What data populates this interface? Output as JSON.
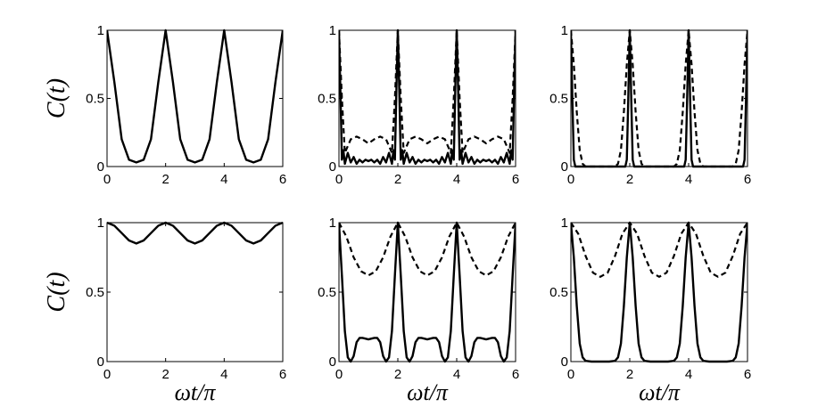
{
  "chart_data": [
    {
      "type": "line",
      "row": 0,
      "col": 0,
      "ylabel": "C(t)",
      "xlabel": "",
      "xlim": [
        0,
        6
      ],
      "ylim": [
        0,
        1
      ],
      "x_ticks": [
        "0",
        "2",
        "4",
        "6"
      ],
      "y_ticks": [
        "0",
        "0.5",
        "1"
      ],
      "series": [
        {
          "style": "solid",
          "x": [
            0,
            0.25,
            0.5,
            0.75,
            1.0,
            1.25,
            1.5,
            1.75,
            2.0,
            2.25,
            2.5,
            2.75,
            3.0,
            3.25,
            3.5,
            3.75,
            4.0,
            4.25,
            4.5,
            4.75,
            5.0,
            5.25,
            5.5,
            5.75,
            6.0
          ],
          "y": [
            1.0,
            0.62,
            0.2,
            0.05,
            0.03,
            0.05,
            0.2,
            0.62,
            1.0,
            0.62,
            0.2,
            0.05,
            0.03,
            0.05,
            0.2,
            0.62,
            1.0,
            0.62,
            0.2,
            0.05,
            0.03,
            0.05,
            0.2,
            0.62,
            1.0
          ]
        }
      ]
    },
    {
      "type": "line",
      "row": 0,
      "col": 1,
      "ylabel": "",
      "xlabel": "",
      "xlim": [
        0,
        6
      ],
      "ylim": [
        0,
        1
      ],
      "x_ticks": [
        "0",
        "2",
        "4",
        "6"
      ],
      "y_ticks": [
        "0",
        "0.5",
        "1"
      ],
      "series": [
        {
          "style": "solid",
          "x": [
            0,
            0.05,
            0.1,
            0.15,
            0.2,
            0.3,
            0.4,
            0.5,
            0.6,
            0.7,
            0.8,
            0.9,
            1.0,
            1.1,
            1.2,
            1.3,
            1.4,
            1.5,
            1.6,
            1.7,
            1.8,
            1.85,
            1.9,
            1.95,
            2.0,
            2.05,
            2.1,
            2.15,
            2.2,
            2.3,
            2.4,
            2.5,
            2.6,
            2.7,
            2.8,
            2.9,
            3.0,
            3.1,
            3.2,
            3.3,
            3.4,
            3.5,
            3.6,
            3.7,
            3.8,
            3.85,
            3.9,
            3.95,
            4.0,
            4.05,
            4.1,
            4.15,
            4.2,
            4.3,
            4.4,
            4.5,
            4.6,
            4.7,
            4.8,
            4.9,
            5.0,
            5.1,
            5.2,
            5.3,
            5.4,
            5.5,
            5.6,
            5.7,
            5.8,
            5.85,
            5.9,
            5.95,
            6.0
          ],
          "y": [
            1.0,
            0.55,
            0.05,
            0.12,
            0.02,
            0.1,
            0.03,
            0.07,
            0.02,
            0.05,
            0.03,
            0.05,
            0.04,
            0.05,
            0.03,
            0.05,
            0.02,
            0.07,
            0.03,
            0.1,
            0.02,
            0.12,
            0.05,
            0.55,
            1.0,
            0.55,
            0.05,
            0.12,
            0.02,
            0.1,
            0.03,
            0.07,
            0.02,
            0.05,
            0.03,
            0.05,
            0.04,
            0.05,
            0.03,
            0.05,
            0.02,
            0.07,
            0.03,
            0.1,
            0.02,
            0.12,
            0.05,
            0.55,
            1.0,
            0.55,
            0.05,
            0.12,
            0.02,
            0.1,
            0.03,
            0.07,
            0.02,
            0.05,
            0.03,
            0.05,
            0.04,
            0.05,
            0.03,
            0.05,
            0.02,
            0.07,
            0.03,
            0.1,
            0.02,
            0.12,
            0.05,
            0.55,
            1.0
          ]
        },
        {
          "style": "dashed",
          "x": [
            0,
            0.1,
            0.2,
            0.3,
            0.4,
            0.6,
            0.8,
            1.0,
            1.2,
            1.4,
            1.6,
            1.7,
            1.8,
            1.9,
            2.0,
            2.1,
            2.2,
            2.3,
            2.4,
            2.6,
            2.8,
            3.0,
            3.2,
            3.4,
            3.6,
            3.7,
            3.8,
            3.9,
            4.0,
            4.1,
            4.2,
            4.3,
            4.4,
            4.6,
            4.8,
            5.0,
            5.2,
            5.4,
            5.6,
            5.7,
            5.8,
            5.9,
            6.0
          ],
          "y": [
            1.0,
            0.5,
            0.1,
            0.15,
            0.2,
            0.22,
            0.2,
            0.17,
            0.2,
            0.22,
            0.2,
            0.15,
            0.1,
            0.5,
            1.0,
            0.5,
            0.1,
            0.15,
            0.2,
            0.22,
            0.2,
            0.17,
            0.2,
            0.22,
            0.2,
            0.15,
            0.1,
            0.5,
            1.0,
            0.5,
            0.1,
            0.15,
            0.2,
            0.22,
            0.2,
            0.17,
            0.2,
            0.22,
            0.2,
            0.15,
            0.1,
            0.5,
            1.0
          ]
        }
      ]
    },
    {
      "type": "line",
      "row": 0,
      "col": 2,
      "ylabel": "",
      "xlabel": "",
      "xlim": [
        0,
        6
      ],
      "ylim": [
        0,
        1
      ],
      "x_ticks": [
        "0",
        "2",
        "4",
        "6"
      ],
      "y_ticks": [
        "0",
        "0.5",
        "1"
      ],
      "series": [
        {
          "style": "solid",
          "x": [
            0,
            0.05,
            0.1,
            0.15,
            0.5,
            1.0,
            1.5,
            1.85,
            1.9,
            1.95,
            2.0,
            2.05,
            2.1,
            2.15,
            2.5,
            3.0,
            3.5,
            3.85,
            3.9,
            3.95,
            4.0,
            4.05,
            4.1,
            4.15,
            4.5,
            5.0,
            5.5,
            5.85,
            5.9,
            5.95,
            6.0
          ],
          "y": [
            1.0,
            0.5,
            0.05,
            0.0,
            0.0,
            0.0,
            0.0,
            0.0,
            0.05,
            0.5,
            1.0,
            0.5,
            0.05,
            0.0,
            0.0,
            0.0,
            0.0,
            0.0,
            0.05,
            0.5,
            1.0,
            0.5,
            0.05,
            0.0,
            0.0,
            0.0,
            0.0,
            0.0,
            0.05,
            0.5,
            1.0
          ]
        },
        {
          "style": "dashed",
          "x": [
            0,
            0.1,
            0.2,
            0.3,
            0.4,
            0.5,
            1.0,
            1.5,
            1.6,
            1.7,
            1.8,
            1.9,
            2.0,
            2.1,
            2.2,
            2.3,
            2.4,
            2.5,
            3.0,
            3.5,
            3.6,
            3.7,
            3.8,
            3.9,
            4.0,
            4.1,
            4.2,
            4.3,
            4.4,
            4.5,
            5.0,
            5.5,
            5.6,
            5.7,
            5.8,
            5.9,
            6.0
          ],
          "y": [
            1.0,
            0.75,
            0.4,
            0.12,
            0.02,
            0.0,
            0.0,
            0.0,
            0.02,
            0.12,
            0.4,
            0.75,
            1.0,
            0.75,
            0.4,
            0.12,
            0.02,
            0.0,
            0.0,
            0.0,
            0.02,
            0.12,
            0.4,
            0.75,
            1.0,
            0.75,
            0.4,
            0.12,
            0.02,
            0.0,
            0.0,
            0.0,
            0.02,
            0.12,
            0.4,
            0.75,
            1.0
          ]
        }
      ]
    },
    {
      "type": "line",
      "row": 1,
      "col": 0,
      "ylabel": "C(t)",
      "xlabel": "ωt/π",
      "xlim": [
        0,
        6
      ],
      "ylim": [
        0,
        1
      ],
      "x_ticks": [
        "0",
        "2",
        "4",
        "6"
      ],
      "y_ticks": [
        "0",
        "0.5",
        "1"
      ],
      "series": [
        {
          "style": "solid",
          "x": [
            0,
            0.25,
            0.5,
            0.75,
            1.0,
            1.25,
            1.5,
            1.75,
            2.0,
            2.25,
            2.5,
            2.75,
            3.0,
            3.25,
            3.5,
            3.75,
            4.0,
            4.25,
            4.5,
            4.75,
            5.0,
            5.25,
            5.5,
            5.75,
            6.0
          ],
          "y": [
            1.0,
            0.978,
            0.925,
            0.872,
            0.85,
            0.872,
            0.925,
            0.978,
            1.0,
            0.978,
            0.925,
            0.872,
            0.85,
            0.872,
            0.925,
            0.978,
            1.0,
            0.978,
            0.925,
            0.872,
            0.85,
            0.872,
            0.925,
            0.978,
            1.0
          ]
        }
      ]
    },
    {
      "type": "line",
      "row": 1,
      "col": 1,
      "ylabel": "",
      "xlabel": "ωt/π",
      "xlim": [
        0,
        6
      ],
      "ylim": [
        0,
        1
      ],
      "x_ticks": [
        "0",
        "2",
        "4",
        "6"
      ],
      "y_ticks": [
        "0",
        "0.5",
        "1"
      ],
      "series": [
        {
          "style": "solid",
          "x": [
            0,
            0.1,
            0.2,
            0.3,
            0.4,
            0.5,
            0.6,
            0.7,
            0.8,
            1.0,
            1.2,
            1.3,
            1.4,
            1.5,
            1.6,
            1.7,
            1.8,
            1.9,
            2.0,
            2.1,
            2.2,
            2.3,
            2.4,
            2.5,
            2.6,
            2.7,
            2.8,
            3.0,
            3.2,
            3.3,
            3.4,
            3.5,
            3.6,
            3.7,
            3.8,
            3.9,
            4.0,
            4.1,
            4.2,
            4.3,
            4.4,
            4.5,
            4.6,
            4.7,
            4.8,
            5.0,
            5.2,
            5.3,
            5.4,
            5.5,
            5.6,
            5.7,
            5.8,
            5.9,
            6.0
          ],
          "y": [
            1.0,
            0.62,
            0.22,
            0.03,
            0.0,
            0.04,
            0.14,
            0.17,
            0.17,
            0.16,
            0.17,
            0.17,
            0.14,
            0.04,
            0.0,
            0.03,
            0.22,
            0.62,
            1.0,
            0.62,
            0.22,
            0.03,
            0.0,
            0.04,
            0.14,
            0.17,
            0.17,
            0.16,
            0.17,
            0.17,
            0.14,
            0.04,
            0.0,
            0.03,
            0.22,
            0.62,
            1.0,
            0.62,
            0.22,
            0.03,
            0.0,
            0.04,
            0.14,
            0.17,
            0.17,
            0.16,
            0.17,
            0.17,
            0.14,
            0.04,
            0.0,
            0.03,
            0.22,
            0.62,
            1.0
          ]
        },
        {
          "style": "dashed",
          "x": [
            0,
            0.25,
            0.5,
            0.75,
            1.0,
            1.25,
            1.5,
            1.75,
            2.0,
            2.25,
            2.5,
            2.75,
            3.0,
            3.25,
            3.5,
            3.75,
            4.0,
            4.25,
            4.5,
            4.75,
            5.0,
            5.25,
            5.5,
            5.75,
            6.0
          ],
          "y": [
            1.0,
            0.9,
            0.75,
            0.65,
            0.62,
            0.65,
            0.75,
            0.9,
            1.0,
            0.9,
            0.75,
            0.65,
            0.62,
            0.65,
            0.75,
            0.9,
            1.0,
            0.9,
            0.75,
            0.65,
            0.62,
            0.65,
            0.75,
            0.9,
            1.0
          ]
        }
      ]
    },
    {
      "type": "line",
      "row": 1,
      "col": 2,
      "ylabel": "",
      "xlabel": "ωt/π",
      "xlim": [
        0,
        6
      ],
      "ylim": [
        0,
        1
      ],
      "x_ticks": [
        "0",
        "2",
        "4",
        "6"
      ],
      "y_ticks": [
        "0",
        "0.5",
        "1"
      ],
      "series": [
        {
          "style": "solid",
          "x": [
            0,
            0.1,
            0.2,
            0.3,
            0.4,
            0.5,
            0.7,
            1.0,
            1.3,
            1.5,
            1.6,
            1.7,
            1.8,
            1.9,
            2.0,
            2.1,
            2.2,
            2.3,
            2.4,
            2.5,
            2.7,
            3.0,
            3.3,
            3.5,
            3.6,
            3.7,
            3.8,
            3.9,
            4.0,
            4.1,
            4.2,
            4.3,
            4.4,
            4.5,
            4.7,
            5.0,
            5.3,
            5.5,
            5.6,
            5.7,
            5.8,
            5.9,
            6.0
          ],
          "y": [
            1.0,
            0.75,
            0.4,
            0.13,
            0.03,
            0.005,
            0.0,
            0.0,
            0.0,
            0.005,
            0.03,
            0.13,
            0.4,
            0.75,
            1.0,
            0.75,
            0.4,
            0.13,
            0.03,
            0.005,
            0.0,
            0.0,
            0.0,
            0.005,
            0.03,
            0.13,
            0.4,
            0.75,
            1.0,
            0.75,
            0.4,
            0.13,
            0.03,
            0.005,
            0.0,
            0.0,
            0.0,
            0.005,
            0.03,
            0.13,
            0.4,
            0.75,
            1.0
          ]
        },
        {
          "style": "dashed",
          "x": [
            0,
            0.25,
            0.5,
            0.75,
            1.0,
            1.25,
            1.5,
            1.75,
            2.0,
            2.25,
            2.5,
            2.75,
            3.0,
            3.25,
            3.5,
            3.75,
            4.0,
            4.25,
            4.5,
            4.75,
            5.0,
            5.25,
            5.5,
            5.75,
            6.0
          ],
          "y": [
            1.0,
            0.92,
            0.76,
            0.64,
            0.61,
            0.64,
            0.76,
            0.92,
            1.0,
            0.92,
            0.76,
            0.64,
            0.61,
            0.64,
            0.76,
            0.92,
            1.0,
            0.92,
            0.76,
            0.64,
            0.61,
            0.64,
            0.76,
            0.92,
            1.0
          ]
        }
      ]
    }
  ]
}
